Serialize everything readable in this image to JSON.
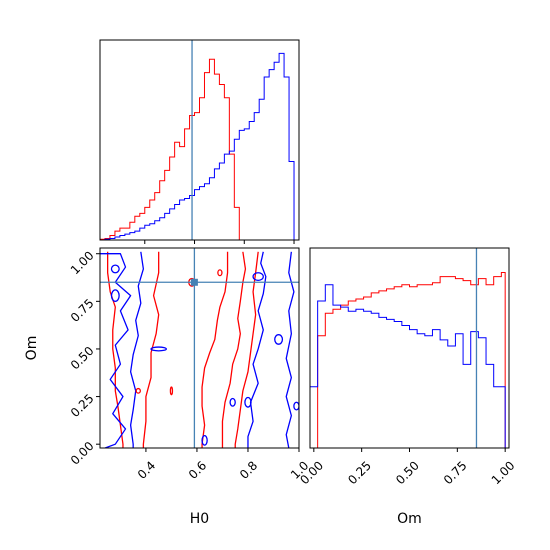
{
  "chart_data": [
    {
      "type": "corner",
      "params": [
        "H0",
        "Om"
      ],
      "truth": {
        "H0": 0.59,
        "Om": 0.85
      },
      "truth_color": "#4682b4",
      "series": [
        {
          "color": "#ff0000"
        },
        {
          "color": "#0000ff"
        }
      ],
      "panels": [
        {
          "id": "hist-H0",
          "type": "histogram",
          "xlim": [
            0.22,
            1.02
          ],
          "bin_edges": [
            0.22,
            0.24,
            0.26,
            0.28,
            0.3,
            0.32,
            0.34,
            0.36,
            0.38,
            0.4,
            0.42,
            0.44,
            0.46,
            0.48,
            0.5,
            0.52,
            0.54,
            0.56,
            0.58,
            0.6,
            0.62,
            0.64,
            0.66,
            0.68,
            0.7,
            0.72,
            0.74,
            0.76,
            0.78,
            0.8,
            0.82,
            0.84,
            0.86,
            0.88,
            0.9,
            0.92,
            0.94,
            0.96,
            0.98,
            1.0
          ],
          "counts": [
            [
              0.5,
              1,
              3,
              6,
              8,
              8,
              12,
              16,
              18,
              22,
              27,
              32,
              40,
              47,
              56,
              66,
              63,
              75,
              84,
              86,
              96,
              113,
              122,
              112,
              105,
              96,
              58,
              22,
              0,
              0,
              0,
              0,
              0,
              0,
              0,
              0,
              0,
              0,
              0
            ],
            [
              0,
              0.5,
              1,
              2,
              3,
              4,
              5,
              6,
              8,
              10,
              11,
              13,
              15,
              18,
              21,
              24,
              27,
              28,
              30,
              34,
              36,
              38,
              42,
              48,
              52,
              58,
              60,
              68,
              74,
              75,
              80,
              86,
              95,
              110,
              115,
              120,
              126,
              110,
              53
            ]
          ],
          "ymax": 135,
          "xticks": [
            0.4,
            0.6,
            0.8,
            1.0
          ],
          "tick_labels_shown": false
        },
        {
          "id": "contour-H0-Om",
          "type": "contour",
          "xlabel": "H0",
          "ylabel": "Om",
          "xlim": [
            0.22,
            1.0
          ],
          "ylim": [
            -0.02,
            1.03
          ],
          "xticks": [
            0.4,
            0.6,
            0.8,
            1.0
          ],
          "xtick_labels": [
            "0.4",
            "0.6",
            "0.8",
            "1.0"
          ],
          "yticks": [
            0.0,
            0.25,
            0.5,
            0.75,
            1.0
          ],
          "ytick_labels": [
            "0.00",
            "0.25",
            "0.50",
            "0.75",
            "1.00"
          ],
          "contours": [
            {
              "series": 0,
              "points": [
                [
                  0.25,
                  1.01
                ],
                [
                  0.25,
                  0.9
                ],
                [
                  0.26,
                  0.8
                ],
                [
                  0.28,
                  0.72
                ],
                [
                  0.27,
                  0.6
                ],
                [
                  0.27,
                  0.5
                ],
                [
                  0.28,
                  0.4
                ],
                [
                  0.28,
                  0.28
                ],
                [
                  0.29,
                  0.2
                ],
                [
                  0.3,
                  0.1
                ],
                [
                  0.31,
                  0.0
                ],
                [
                  0.31,
                  -0.02
                ]
              ]
            },
            {
              "series": 0,
              "points": [
                [
                  0.45,
                  1.01
                ],
                [
                  0.45,
                  0.9
                ],
                [
                  0.43,
                  0.78
                ],
                [
                  0.45,
                  0.68
                ],
                [
                  0.44,
                  0.58
                ],
                [
                  0.42,
                  0.48
                ],
                [
                  0.42,
                  0.35
                ],
                [
                  0.4,
                  0.25
                ],
                [
                  0.4,
                  0.12
                ],
                [
                  0.39,
                  0.0
                ],
                [
                  0.39,
                  -0.02
                ]
              ]
            },
            {
              "series": 0,
              "points": [
                [
                  0.72,
                  1.01
                ],
                [
                  0.72,
                  0.9
                ],
                [
                  0.71,
                  0.8
                ],
                [
                  0.69,
                  0.72
                ],
                [
                  0.68,
                  0.65
                ],
                [
                  0.67,
                  0.55
                ],
                [
                  0.65,
                  0.48
                ],
                [
                  0.63,
                  0.4
                ],
                [
                  0.62,
                  0.3
                ],
                [
                  0.62,
                  0.2
                ],
                [
                  0.63,
                  0.1
                ],
                [
                  0.62,
                  0.0
                ],
                [
                  0.62,
                  -0.02
                ]
              ]
            },
            {
              "series": 0,
              "points": [
                [
                  0.78,
                  1.01
                ],
                [
                  0.79,
                  0.92
                ],
                [
                  0.78,
                  0.85
                ],
                [
                  0.77,
                  0.75
                ],
                [
                  0.76,
                  0.66
                ],
                [
                  0.77,
                  0.58
                ],
                [
                  0.76,
                  0.5
                ],
                [
                  0.74,
                  0.42
                ],
                [
                  0.73,
                  0.32
                ],
                [
                  0.71,
                  0.22
                ],
                [
                  0.7,
                  0.12
                ],
                [
                  0.7,
                  0.02
                ],
                [
                  0.7,
                  -0.02
                ]
              ]
            },
            {
              "series": 0,
              "points": [
                [
                  0.84,
                  1.01
                ],
                [
                  0.83,
                  0.9
                ],
                [
                  0.82,
                  0.8
                ],
                [
                  0.83,
                  0.68
                ],
                [
                  0.82,
                  0.58
                ],
                [
                  0.81,
                  0.48
                ],
                [
                  0.8,
                  0.38
                ],
                [
                  0.78,
                  0.28
                ],
                [
                  0.77,
                  0.18
                ],
                [
                  0.76,
                  0.08
                ],
                [
                  0.75,
                  0.0
                ],
                [
                  0.75,
                  -0.02
                ]
              ]
            },
            {
              "series": 1,
              "points": [
                [
                  0.22,
                  1.0
                ],
                [
                  0.3,
                  1.0
                ],
                [
                  0.32,
                  0.93
                ],
                [
                  0.28,
                  0.85
                ],
                [
                  0.34,
                  0.78
                ],
                [
                  0.3,
                  0.7
                ],
                [
                  0.33,
                  0.6
                ],
                [
                  0.28,
                  0.52
                ],
                [
                  0.3,
                  0.42
                ],
                [
                  0.26,
                  0.34
                ],
                [
                  0.31,
                  0.25
                ],
                [
                  0.27,
                  0.16
                ],
                [
                  0.32,
                  0.08
                ],
                [
                  0.28,
                  0.0
                ],
                [
                  0.24,
                  -0.02
                ]
              ]
            },
            {
              "series": 1,
              "points": [
                [
                  0.38,
                  1.01
                ],
                [
                  0.39,
                  0.92
                ],
                [
                  0.37,
                  0.83
                ],
                [
                  0.38,
                  0.74
                ],
                [
                  0.36,
                  0.65
                ],
                [
                  0.37,
                  0.57
                ],
                [
                  0.35,
                  0.47
                ],
                [
                  0.34,
                  0.38
                ],
                [
                  0.36,
                  0.28
                ],
                [
                  0.35,
                  0.18
                ],
                [
                  0.34,
                  0.1
                ],
                [
                  0.35,
                  0.0
                ],
                [
                  0.35,
                  -0.02
                ]
              ]
            },
            {
              "series": 1,
              "points": [
                [
                  0.86,
                  1.01
                ],
                [
                  0.85,
                  0.95
                ],
                [
                  0.87,
                  0.88
                ],
                [
                  0.86,
                  0.79
                ],
                [
                  0.84,
                  0.7
                ],
                [
                  0.86,
                  0.6
                ],
                [
                  0.84,
                  0.5
                ],
                [
                  0.82,
                  0.42
                ],
                [
                  0.84,
                  0.32
                ],
                [
                  0.81,
                  0.22
                ],
                [
                  0.82,
                  0.12
                ],
                [
                  0.8,
                  0.04
                ],
                [
                  0.8,
                  -0.02
                ]
              ]
            },
            {
              "series": 1,
              "points": [
                [
                  0.97,
                  1.01
                ],
                [
                  0.96,
                  0.9
                ],
                [
                  0.98,
                  0.8
                ],
                [
                  0.96,
                  0.7
                ],
                [
                  0.97,
                  0.58
                ],
                [
                  0.95,
                  0.45
                ],
                [
                  0.97,
                  0.35
                ],
                [
                  0.95,
                  0.25
                ],
                [
                  0.97,
                  0.15
                ],
                [
                  0.95,
                  0.05
                ],
                [
                  0.96,
                  -0.02
                ]
              ]
            }
          ],
          "islands": [
            {
              "series": 1,
              "x": 0.45,
              "y": 0.5,
              "rx": 0.03,
              "ry": 0.01
            },
            {
              "series": 1,
              "x": 0.28,
              "y": 0.78,
              "rx": 0.015,
              "ry": 0.03
            },
            {
              "series": 1,
              "x": 0.28,
              "y": 0.92,
              "rx": 0.015,
              "ry": 0.02
            },
            {
              "series": 1,
              "x": 0.63,
              "y": 0.02,
              "rx": 0.01,
              "ry": 0.025
            },
            {
              "series": 1,
              "x": 0.8,
              "y": 0.22,
              "rx": 0.012,
              "ry": 0.025
            },
            {
              "series": 1,
              "x": 0.84,
              "y": 0.88,
              "rx": 0.02,
              "ry": 0.02
            },
            {
              "series": 1,
              "x": 0.92,
              "y": 0.55,
              "rx": 0.015,
              "ry": 0.025
            },
            {
              "series": 1,
              "x": 0.99,
              "y": 0.2,
              "rx": 0.01,
              "ry": 0.02
            },
            {
              "series": 1,
              "x": 0.74,
              "y": 0.22,
              "rx": 0.01,
              "ry": 0.02
            },
            {
              "series": 0,
              "x": 0.58,
              "y": 0.85,
              "rx": 0.012,
              "ry": 0.02
            },
            {
              "series": 0,
              "x": 0.37,
              "y": 0.28,
              "rx": 0.008,
              "ry": 0.012
            },
            {
              "series": 0,
              "x": 0.5,
              "y": 0.28,
              "rx": 0.004,
              "ry": 0.02
            },
            {
              "series": 0,
              "x": 0.69,
              "y": 0.9,
              "rx": 0.008,
              "ry": 0.015
            }
          ]
        },
        {
          "id": "hist-Om",
          "type": "histogram",
          "xlabel": "Om",
          "xlim": [
            -0.02,
            1.02
          ],
          "bin_edges": [
            -0.02,
            0.02,
            0.06,
            0.1,
            0.14,
            0.18,
            0.22,
            0.26,
            0.3,
            0.34,
            0.38,
            0.42,
            0.46,
            0.5,
            0.54,
            0.58,
            0.62,
            0.66,
            0.7,
            0.74,
            0.78,
            0.82,
            0.86,
            0.9,
            0.94,
            0.98,
            1.0
          ],
          "counts": [
            [
              0,
              55,
              66,
              68,
              70,
              72,
              73,
              74,
              76,
              77,
              78,
              79,
              80,
              79,
              80,
              80,
              81,
              84,
              84,
              83,
              82,
              80,
              83,
              80,
              84,
              86
            ],
            [
              30,
              72,
              80,
              70,
              69,
              67,
              68,
              67,
              66,
              64,
              63,
              62,
              60,
              58,
              56,
              55,
              58,
              53,
              50,
              56,
              41,
              57,
              54,
              41,
              30,
              30
            ]
          ],
          "ymax": 98,
          "xticks": [
            0.0,
            0.25,
            0.5,
            0.75,
            1.0
          ],
          "xtick_labels": [
            "0.00",
            "0.25",
            "0.50",
            "0.75",
            "1.00"
          ]
        }
      ]
    }
  ]
}
